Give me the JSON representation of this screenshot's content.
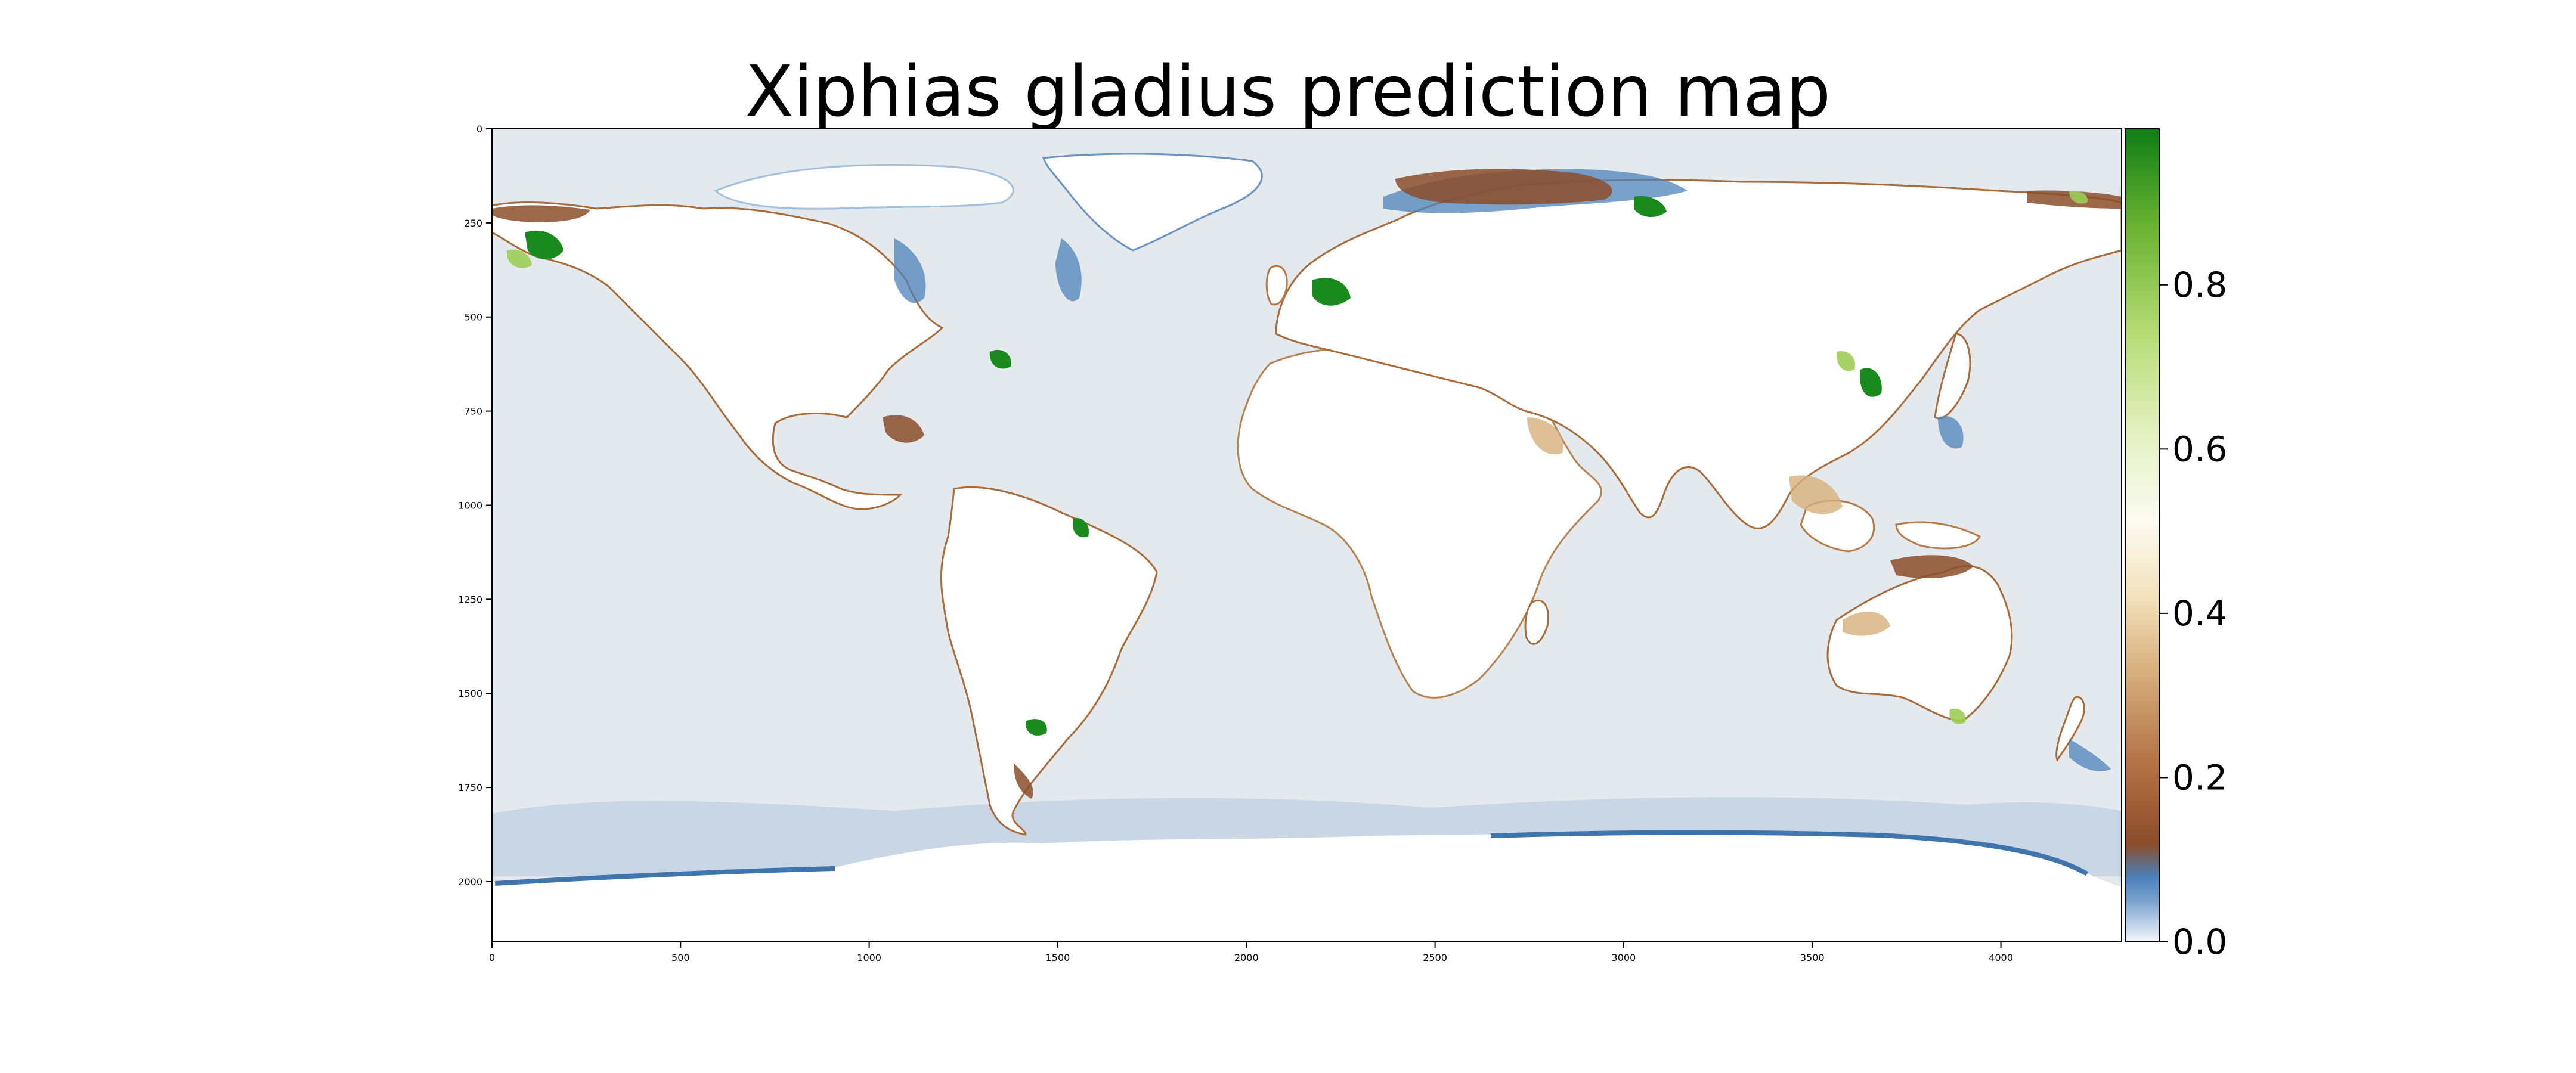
{
  "title": "Xiphias gladius prediction map",
  "chart_data": {
    "type": "heatmap",
    "title": "Xiphias gladius prediction map",
    "xlabel": "",
    "ylabel": "",
    "x_ticks": [
      0,
      500,
      1000,
      1500,
      2000,
      2500,
      3000,
      3500,
      4000
    ],
    "y_ticks": [
      0,
      250,
      500,
      750,
      1000,
      1250,
      1500,
      1750,
      2000
    ],
    "xlim": [
      0,
      4320
    ],
    "ylim": [
      2160,
      0
    ],
    "colorbar": {
      "ticks": [
        0.0,
        0.2,
        0.4,
        0.6,
        0.8
      ],
      "tick_labels": [
        "0.0",
        "0.2",
        "0.4",
        "0.6",
        "0.8"
      ],
      "range": [
        0,
        0.99
      ],
      "colors": [
        "#f5f7fb",
        "#4a7fb8",
        "#8b4d2a",
        "#c9955a",
        "#f3e4c0",
        "#fbfbf2",
        "#d8eda4",
        "#86c43c",
        "#0e7d16"
      ]
    },
    "background_value": 0.0,
    "land_color": "#ffffff",
    "ocean_color": "#e4e9ee"
  }
}
